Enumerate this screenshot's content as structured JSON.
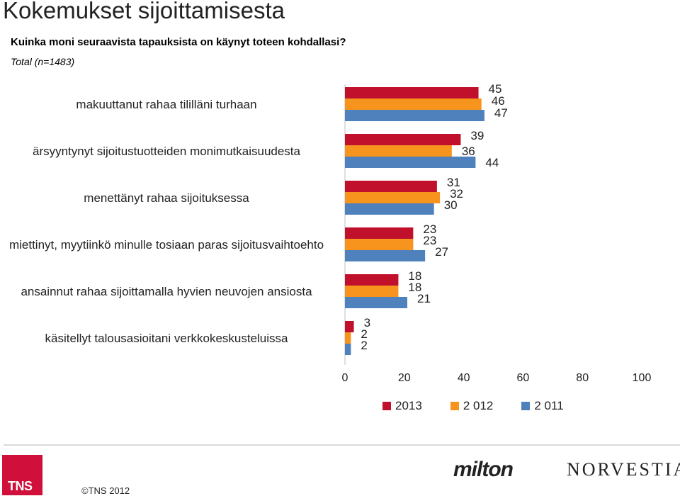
{
  "page": {
    "title": "Kokemukset sijoittamisesta",
    "subtitle": "Kuinka moni seuraavista tapauksista on käynyt toteen kohdallasi?",
    "sample": "Total (n=1483)",
    "copyright": "©TNS 2012",
    "logo_tns": "TNS",
    "logo_milton": "milton",
    "logo_norvestia": "NORVESTIA"
  },
  "chart_data": {
    "type": "bar",
    "orientation": "horizontal",
    "categories": [
      "makuuttanut rahaa tililläni turhaan",
      "ärsyyntynyt sijoitustuotteiden monimutkaisuudesta",
      "menettänyt rahaa sijoituksessa",
      "miettinyt, myytiinkö minulle tosiaan paras sijoitusvaihtoehto",
      "ansainnut rahaa sijoittamalla hyvien neuvojen ansiosta",
      "käsitellyt talousasioitani verkkokeskusteluissa"
    ],
    "series": [
      {
        "name": "2013",
        "color": "#c0102c",
        "values": [
          45,
          39,
          31,
          23,
          18,
          3
        ]
      },
      {
        "name": "2 012",
        "color": "#f7941d",
        "values": [
          46,
          36,
          32,
          23,
          18,
          2
        ]
      },
      {
        "name": "2 011",
        "color": "#4f81bd",
        "values": [
          47,
          44,
          30,
          27,
          21,
          2
        ]
      }
    ],
    "xlim": [
      0,
      100
    ],
    "xticks": [
      0,
      20,
      40,
      60,
      80,
      100
    ],
    "legend_position": "bottom",
    "grid": false
  }
}
